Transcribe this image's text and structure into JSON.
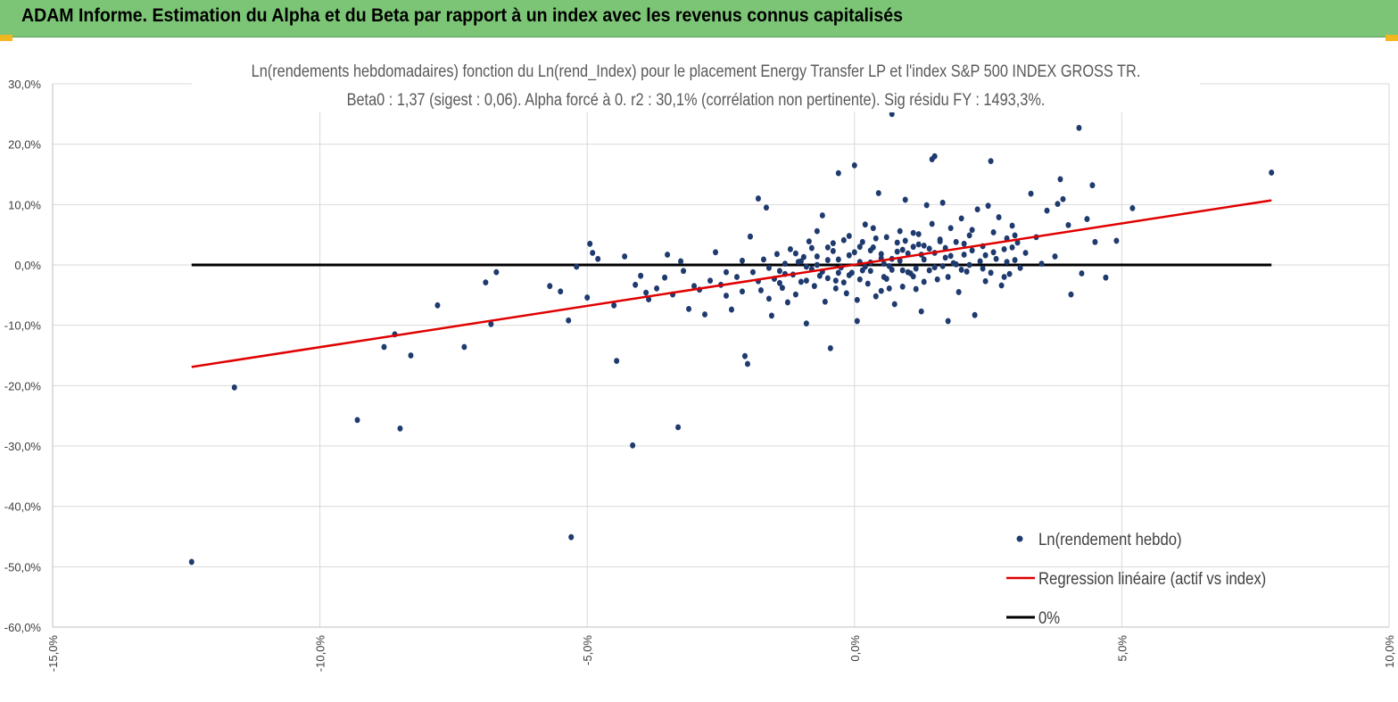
{
  "header": {
    "title": "ADAM Informe. Estimation du Alpha et du Beta par rapport à un index avec les revenus connus capitalisés"
  },
  "chart_data": {
    "type": "scatter",
    "title_line1": "Ln(rendements hebdomadaires) fonction du Ln(rend_Index) pour le placement Energy Transfer LP et l'index S&P 500 INDEX GROSS TR.",
    "title_line2": "Beta0 : 1,37 (sigest : 0,06). Alpha forcé à 0. r2 : 30,1% (corrélation non pertinente). Sig résidu FY : 1493,3%.",
    "xlim": [
      -15,
      10
    ],
    "ylim": [
      -60,
      30
    ],
    "x_ticks": [
      {
        "value": -15,
        "label": "-15,0%"
      },
      {
        "value": -10,
        "label": "-10,0%"
      },
      {
        "value": -5,
        "label": "-5,0%"
      },
      {
        "value": 0,
        "label": "0,0%"
      },
      {
        "value": 5,
        "label": "5,0%"
      },
      {
        "value": 10,
        "label": "10,0%"
      }
    ],
    "y_ticks": [
      {
        "value": 30,
        "label": "30,0%"
      },
      {
        "value": 20,
        "label": "20,0%"
      },
      {
        "value": 10,
        "label": "10,0%"
      },
      {
        "value": 0,
        "label": "0,0%"
      },
      {
        "value": -10,
        "label": "-10,0%"
      },
      {
        "value": -20,
        "label": "-20,0%"
      },
      {
        "value": -30,
        "label": "-30,0%"
      },
      {
        "value": -40,
        "label": "-40,0%"
      },
      {
        "value": -50,
        "label": "-50,0%"
      },
      {
        "value": -60,
        "label": "-60,0%"
      }
    ],
    "grid": "vertical-and-horizontal",
    "legend_position": "bottom-right",
    "series": [
      {
        "name": "Ln(rendement hebdo)",
        "kind": "scatter",
        "color": "#1f3a6e",
        "points": [
          [
            -12.4,
            -49.2
          ],
          [
            -11.6,
            -20.3
          ],
          [
            -9.3,
            -25.7
          ],
          [
            -8.8,
            -13.6
          ],
          [
            -8.6,
            -11.5
          ],
          [
            -8.5,
            -27.1
          ],
          [
            -8.3,
            -15.0
          ],
          [
            -7.8,
            -6.7
          ],
          [
            -7.3,
            -13.6
          ],
          [
            -6.9,
            -2.9
          ],
          [
            -6.8,
            -9.8
          ],
          [
            -6.7,
            -1.2
          ],
          [
            -5.7,
            -3.5
          ],
          [
            -5.5,
            -4.4
          ],
          [
            -5.35,
            -9.2
          ],
          [
            -5.3,
            -45.1
          ],
          [
            -5.2,
            -0.3
          ],
          [
            -5.0,
            -5.4
          ],
          [
            -4.95,
            3.5
          ],
          [
            -4.9,
            2.0
          ],
          [
            -4.8,
            1.0
          ],
          [
            -4.5,
            -6.7
          ],
          [
            -4.45,
            -15.9
          ],
          [
            -4.3,
            1.4
          ],
          [
            -4.1,
            -3.3
          ],
          [
            -4.15,
            -29.9
          ],
          [
            -4.0,
            -1.8
          ],
          [
            -3.9,
            -4.6
          ],
          [
            -3.85,
            -5.7
          ],
          [
            -3.7,
            -3.9
          ],
          [
            -3.55,
            -2.1
          ],
          [
            -3.5,
            1.7
          ],
          [
            -3.4,
            -4.9
          ],
          [
            -3.3,
            -26.9
          ],
          [
            -3.25,
            0.6
          ],
          [
            -3.2,
            -1.0
          ],
          [
            -3.1,
            -7.3
          ],
          [
            -3.0,
            -3.5
          ],
          [
            -2.9,
            -4.1
          ],
          [
            -2.8,
            -8.2
          ],
          [
            -2.7,
            -2.6
          ],
          [
            -2.6,
            2.1
          ],
          [
            -2.5,
            -3.3
          ],
          [
            -2.4,
            -5.1
          ],
          [
            -2.3,
            -7.4
          ],
          [
            -2.2,
            -2.0
          ],
          [
            -2.1,
            -4.4
          ],
          [
            -2.05,
            -15.1
          ],
          [
            -2.0,
            -16.4
          ],
          [
            -1.95,
            4.7
          ],
          [
            -1.9,
            -1.2
          ],
          [
            -1.8,
            11.0
          ],
          [
            -1.75,
            -4.2
          ],
          [
            -1.7,
            0.9
          ],
          [
            -1.65,
            9.5
          ],
          [
            -1.6,
            -5.6
          ],
          [
            -1.55,
            -8.4
          ],
          [
            -1.5,
            -2.3
          ],
          [
            -1.45,
            1.8
          ],
          [
            -1.4,
            -1.0
          ],
          [
            -1.35,
            -3.8
          ],
          [
            -1.3,
            0.2
          ],
          [
            -1.25,
            -6.2
          ],
          [
            -1.2,
            2.6
          ],
          [
            -1.15,
            -1.6
          ],
          [
            -1.1,
            -4.9
          ],
          [
            -1.05,
            0.5
          ],
          [
            -1.0,
            -2.8
          ],
          [
            -0.95,
            1.3
          ],
          [
            -0.9,
            -9.7
          ],
          [
            -0.85,
            3.9
          ],
          [
            -0.8,
            -0.7
          ],
          [
            -0.75,
            -3.5
          ],
          [
            -0.7,
            5.6
          ],
          [
            -0.65,
            -1.8
          ],
          [
            -0.6,
            8.2
          ],
          [
            -0.55,
            -6.1
          ],
          [
            -0.5,
            0.8
          ],
          [
            -0.45,
            -13.8
          ],
          [
            -0.4,
            2.3
          ],
          [
            -0.35,
            -2.6
          ],
          [
            -0.3,
            15.2
          ],
          [
            -0.25,
            -0.4
          ],
          [
            -0.2,
            4.1
          ],
          [
            -0.15,
            -4.7
          ],
          [
            -0.1,
            1.6
          ],
          [
            -0.05,
            -1.3
          ],
          [
            0.0,
            16.5
          ],
          [
            0.05,
            -9.3
          ],
          [
            0.1,
            3.0
          ],
          [
            0.15,
            -0.9
          ],
          [
            0.2,
            6.7
          ],
          [
            0.25,
            -3.1
          ],
          [
            0.3,
            0.4
          ],
          [
            0.35,
            2.9
          ],
          [
            0.4,
            -5.2
          ],
          [
            0.45,
            11.9
          ],
          [
            0.5,
            1.1
          ],
          [
            0.55,
            -2.0
          ],
          [
            0.6,
            4.6
          ],
          [
            0.65,
            -0.2
          ],
          [
            0.7,
            25.0
          ],
          [
            0.75,
            -6.5
          ],
          [
            0.8,
            2.2
          ],
          [
            0.85,
            0.7
          ],
          [
            0.9,
            -3.6
          ],
          [
            0.95,
            10.8
          ],
          [
            1.0,
            1.9
          ],
          [
            1.05,
            -1.4
          ],
          [
            1.1,
            5.3
          ],
          [
            1.15,
            -0.6
          ],
          [
            1.2,
            3.4
          ],
          [
            1.25,
            -7.7
          ],
          [
            1.3,
            0.9
          ],
          [
            1.35,
            9.9
          ],
          [
            1.4,
            2.7
          ],
          [
            1.45,
            17.5
          ],
          [
            1.5,
            18.0
          ],
          [
            1.55,
            -2.4
          ],
          [
            1.6,
            4.2
          ],
          [
            1.65,
            10.3
          ],
          [
            1.7,
            1.2
          ],
          [
            1.75,
            -9.3
          ],
          [
            1.8,
            6.1
          ],
          [
            1.85,
            0.3
          ],
          [
            1.9,
            3.8
          ],
          [
            1.95,
            -4.5
          ],
          [
            2.0,
            7.7
          ],
          [
            2.05,
            1.7
          ],
          [
            2.1,
            -1.1
          ],
          [
            2.15,
            4.9
          ],
          [
            2.2,
            2.4
          ],
          [
            2.25,
            -8.3
          ],
          [
            2.3,
            9.2
          ],
          [
            2.35,
            0.6
          ],
          [
            2.4,
            3.1
          ],
          [
            2.45,
            -2.7
          ],
          [
            2.5,
            9.8
          ],
          [
            2.55,
            17.2
          ],
          [
            2.6,
            5.4
          ],
          [
            2.65,
            1.0
          ],
          [
            2.7,
            7.9
          ],
          [
            2.75,
            -3.4
          ],
          [
            2.8,
            2.6
          ],
          [
            2.85,
            4.4
          ],
          [
            2.9,
            -1.5
          ],
          [
            2.95,
            6.5
          ],
          [
            3.0,
            0.8
          ],
          [
            3.05,
            3.7
          ],
          [
            3.1,
            -0.5
          ],
          [
            3.2,
            2.0
          ],
          [
            3.3,
            11.8
          ],
          [
            3.4,
            4.6
          ],
          [
            3.5,
            0.2
          ],
          [
            3.6,
            9.0
          ],
          [
            3.75,
            1.4
          ],
          [
            3.8,
            10.1
          ],
          [
            3.85,
            14.2
          ],
          [
            3.9,
            10.9
          ],
          [
            4.0,
            6.6
          ],
          [
            4.05,
            -4.9
          ],
          [
            4.2,
            22.7
          ],
          [
            4.25,
            -1.4
          ],
          [
            4.35,
            7.6
          ],
          [
            4.45,
            13.2
          ],
          [
            4.5,
            3.8
          ],
          [
            4.7,
            -2.1
          ],
          [
            4.9,
            4.0
          ],
          [
            5.2,
            9.4
          ],
          [
            7.8,
            15.3
          ],
          [
            -0.9,
            -0.3
          ],
          [
            -0.7,
            1.4
          ],
          [
            -0.5,
            -2.2
          ],
          [
            -0.3,
            0.9
          ],
          [
            -0.1,
            -1.7
          ],
          [
            0.1,
            0.5
          ],
          [
            0.3,
            -1.0
          ],
          [
            0.5,
            1.8
          ],
          [
            0.7,
            -0.8
          ],
          [
            0.9,
            2.5
          ],
          [
            1.1,
            -1.9
          ],
          [
            1.3,
            3.2
          ],
          [
            1.5,
            -0.4
          ],
          [
            1.7,
            2.8
          ],
          [
            1.9,
            0.1
          ],
          [
            -0.8,
            2.8
          ],
          [
            -0.6,
            -1.1
          ],
          [
            -0.4,
            3.6
          ],
          [
            -0.2,
            -2.9
          ],
          [
            0.0,
            2.1
          ],
          [
            0.2,
            -0.3
          ],
          [
            0.4,
            4.4
          ],
          [
            0.6,
            -2.3
          ],
          [
            0.8,
            3.7
          ],
          [
            1.0,
            -1.2
          ],
          [
            1.2,
            5.1
          ],
          [
            1.4,
            -0.9
          ],
          [
            1.6,
            3.9
          ],
          [
            1.8,
            1.5
          ],
          [
            2.0,
            -0.8
          ],
          [
            -1.0,
            0.6
          ],
          [
            -0.35,
            -3.9
          ],
          [
            0.15,
            3.8
          ],
          [
            0.55,
            0.2
          ],
          [
            0.95,
            4.0
          ],
          [
            1.25,
            1.7
          ],
          [
            1.65,
            -0.2
          ],
          [
            2.05,
            3.5
          ],
          [
            2.45,
            1.6
          ],
          [
            2.85,
            0.5
          ],
          [
            -1.3,
            -1.5
          ],
          [
            -1.1,
            1.9
          ],
          [
            -0.9,
            -2.6
          ],
          [
            -0.7,
            0.0
          ],
          [
            -0.5,
            2.9
          ],
          [
            -0.3,
            -1.3
          ],
          [
            -0.1,
            4.8
          ],
          [
            0.1,
            -2.4
          ],
          [
            0.3,
            2.4
          ],
          [
            0.5,
            -4.3
          ],
          [
            0.7,
            1.0
          ],
          [
            0.9,
            -0.9
          ],
          [
            1.1,
            3.0
          ],
          [
            1.3,
            -2.8
          ],
          [
            1.5,
            2.0
          ],
          [
            -2.4,
            -1.2
          ],
          [
            -2.1,
            0.7
          ],
          [
            -1.8,
            -2.7
          ],
          [
            -1.6,
            -0.5
          ],
          [
            -1.4,
            -3.0
          ],
          [
            2.2,
            5.8
          ],
          [
            2.4,
            -0.6
          ],
          [
            2.6,
            2.1
          ],
          [
            2.8,
            -2.0
          ],
          [
            3.0,
            4.9
          ],
          [
            0.05,
            -5.8
          ],
          [
            0.35,
            6.1
          ],
          [
            0.65,
            -3.9
          ],
          [
            0.85,
            5.6
          ],
          [
            1.15,
            -4.0
          ],
          [
            1.45,
            6.8
          ],
          [
            1.75,
            -2.0
          ],
          [
            2.15,
            0.0
          ],
          [
            2.55,
            -1.3
          ],
          [
            2.95,
            2.9
          ]
        ]
      },
      {
        "name": "Regression linéaire (actif vs index)",
        "kind": "line",
        "color": "#e00000",
        "points": [
          [
            -12.4,
            -16.9
          ],
          [
            7.8,
            10.7
          ]
        ]
      },
      {
        "name": "0%",
        "kind": "line",
        "color": "#000000",
        "points": [
          [
            -12.4,
            0
          ],
          [
            7.8,
            0
          ]
        ]
      }
    ]
  }
}
